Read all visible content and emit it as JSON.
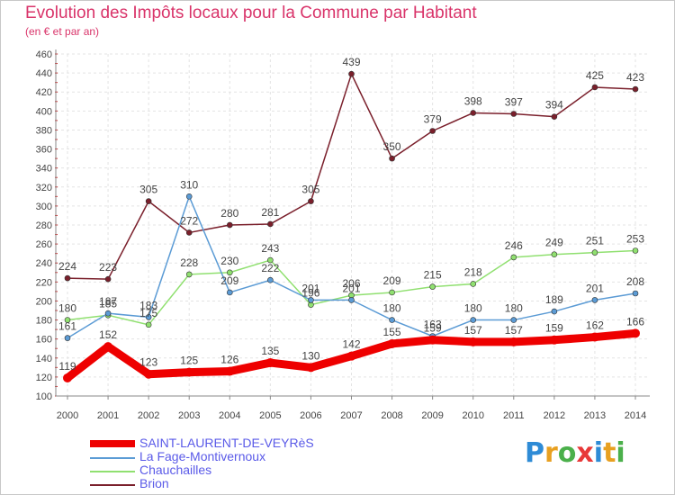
{
  "header": {
    "title": "Evolution des Impôts locaux pour la Commune par Habitant",
    "subtitle": "(en € et par an)"
  },
  "brand": {
    "logo_text": "Proxiti"
  },
  "chart_data": {
    "type": "line",
    "title": "Evolution des Impôts locaux pour la Commune par Habitant",
    "subtitle": "(en € et par an)",
    "xlabel": "",
    "ylabel": "",
    "x": [
      "2000",
      "2001",
      "2002",
      "2003",
      "2004",
      "2005",
      "2006",
      "2007",
      "2008",
      "2009",
      "2010",
      "2011",
      "2012",
      "2013",
      "2014"
    ],
    "ylim": [
      100,
      460
    ],
    "yticks": [
      100,
      120,
      140,
      160,
      180,
      200,
      220,
      240,
      260,
      280,
      300,
      320,
      340,
      360,
      380,
      400,
      420,
      440,
      460
    ],
    "grid": true,
    "legend_position": "bottom-left",
    "series": [
      {
        "name": "SAINT-LAURENT-DE-VEYRèS",
        "color": "#ee0000",
        "values": [
          119,
          152,
          123,
          125,
          126,
          135,
          130,
          142,
          155,
          159,
          157,
          157,
          159,
          162,
          166
        ]
      },
      {
        "name": "La Fage-Montivernoux",
        "color": "#5b9bd5",
        "values": [
          161,
          187,
          183,
          310,
          209,
          222,
          201,
          201,
          180,
          163,
          180,
          180,
          189,
          201,
          208
        ]
      },
      {
        "name": "Chauchailles",
        "color": "#90e070",
        "values": [
          180,
          185,
          175,
          228,
          230,
          243,
          196,
          206,
          209,
          215,
          218,
          246,
          249,
          251,
          253
        ]
      },
      {
        "name": "Brion",
        "color": "#7a1f2b",
        "values": [
          224,
          223,
          305,
          272,
          280,
          281,
          305,
          439,
          350,
          379,
          398,
          397,
          394,
          425,
          423
        ]
      }
    ]
  }
}
